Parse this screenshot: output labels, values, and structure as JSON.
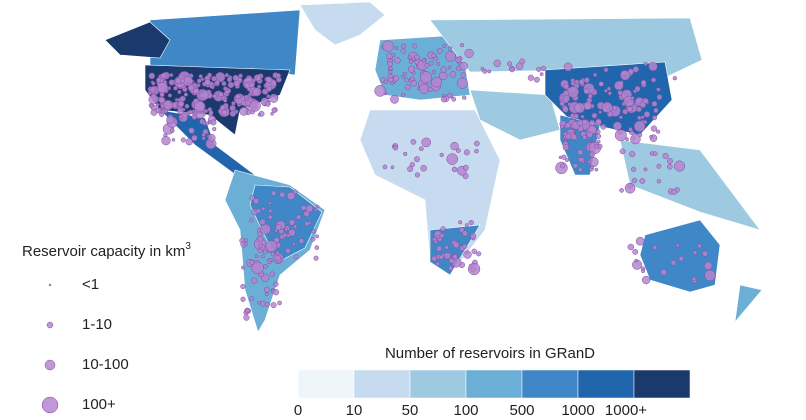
{
  "capacity_legend": {
    "title": "Reservoir capacity in km",
    "title_superscript": "3",
    "items": [
      "<1",
      "1-10",
      "10-100",
      "100+"
    ]
  },
  "count_legend": {
    "title": "Number of reservoirs in GRanD",
    "colors": [
      "#eef6fc",
      "#c6dbef",
      "#9ecae1",
      "#6baed6",
      "#3f87c6",
      "#2166ac",
      "#1a3a6e"
    ],
    "labels": [
      "0",
      "10",
      "50",
      "100",
      "500",
      "1000",
      "1000+"
    ]
  }
}
